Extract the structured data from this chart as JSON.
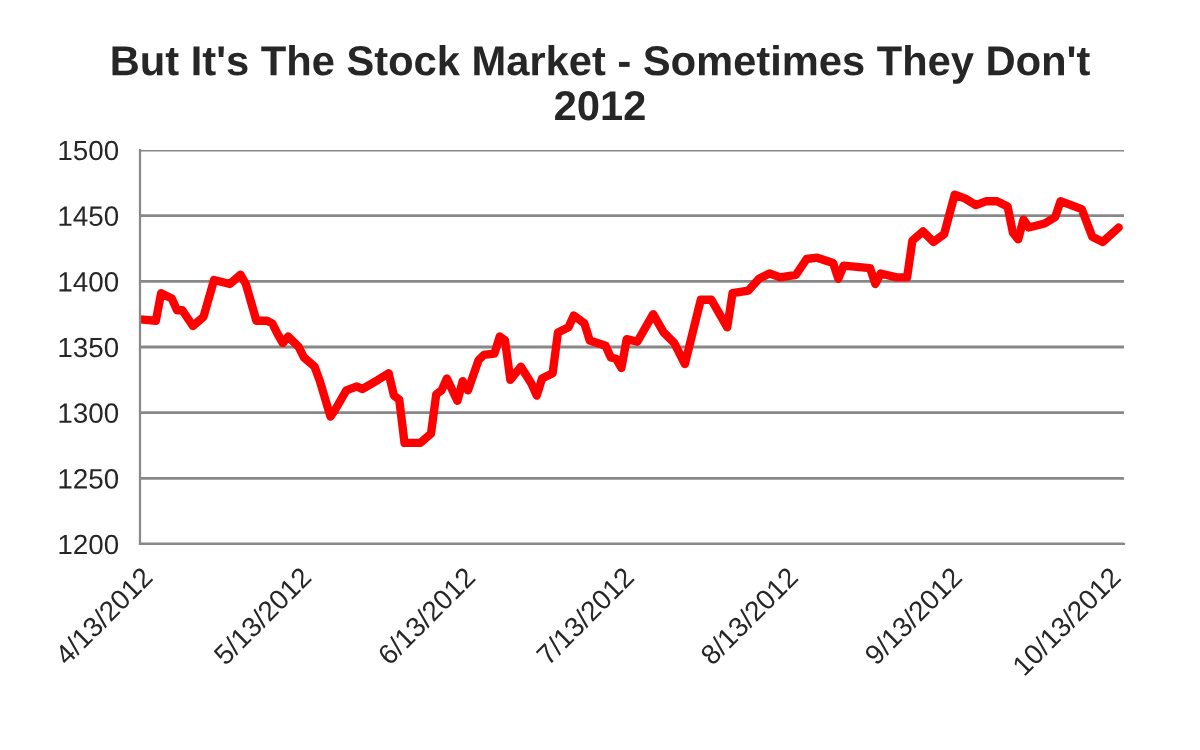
{
  "chart_data": {
    "type": "line",
    "title": "But It's The Stock Market - Sometimes They Don't\n2012",
    "x": [
      "2012-04-13",
      "2012-04-16",
      "2012-04-17",
      "2012-04-19",
      "2012-04-20",
      "2012-04-21",
      "2012-04-23",
      "2012-04-25",
      "2012-04-27",
      "2012-04-30",
      "2012-05-02",
      "2012-05-03",
      "2012-05-05",
      "2012-05-07",
      "2012-05-08",
      "2012-05-09",
      "2012-05-10",
      "2012-05-11",
      "2012-05-13",
      "2012-05-14",
      "2012-05-16",
      "2012-05-17",
      "2012-05-19",
      "2012-05-20",
      "2012-05-22",
      "2012-05-24",
      "2012-05-25",
      "2012-05-28",
      "2012-05-30",
      "2012-05-31",
      "2012-06-01",
      "2012-06-02",
      "2012-06-05",
      "2012-06-07",
      "2012-06-08",
      "2012-06-09",
      "2012-06-10",
      "2012-06-12",
      "2012-06-13",
      "2012-06-14",
      "2012-06-16",
      "2012-06-17",
      "2012-06-19",
      "2012-06-20",
      "2012-06-21",
      "2012-06-22",
      "2012-06-24",
      "2012-06-26",
      "2012-06-27",
      "2012-06-28",
      "2012-06-30",
      "2012-07-01",
      "2012-07-03",
      "2012-07-04",
      "2012-07-06",
      "2012-07-07",
      "2012-07-10",
      "2012-07-11",
      "2012-07-12",
      "2012-07-13",
      "2012-07-14",
      "2012-07-16",
      "2012-07-19",
      "2012-07-21",
      "2012-07-23",
      "2012-07-25",
      "2012-07-28",
      "2012-07-30",
      "2012-08-02",
      "2012-08-03",
      "2012-08-06",
      "2012-08-08",
      "2012-08-10",
      "2012-08-12",
      "2012-08-15",
      "2012-08-17",
      "2012-08-19",
      "2012-08-22",
      "2012-08-23",
      "2012-08-24",
      "2012-08-29",
      "2012-08-30",
      "2012-08-31",
      "2012-09-03",
      "2012-09-05",
      "2012-09-06",
      "2012-09-08",
      "2012-09-10",
      "2012-09-12",
      "2012-09-14",
      "2012-09-16",
      "2012-09-18",
      "2012-09-20",
      "2012-09-22",
      "2012-09-24",
      "2012-09-25",
      "2012-09-26",
      "2012-09-27",
      "2012-09-28",
      "2012-10-01",
      "2012-10-03",
      "2012-10-04",
      "2012-10-06",
      "2012-10-08",
      "2012-10-10",
      "2012-10-12",
      "2012-10-15"
    ],
    "series": [
      {
        "color": "#ff0000",
        "values": [
          1371,
          1370,
          1391,
          1387,
          1378,
          1378,
          1366,
          1373,
          1401,
          1398,
          1405,
          1398,
          1370,
          1370,
          1368,
          1360,
          1353,
          1358,
          1350,
          1342,
          1335,
          1324,
          1297,
          1303,
          1317,
          1320,
          1318,
          1325,
          1330,
          1313,
          1310,
          1277,
          1277,
          1284,
          1314,
          1317,
          1326,
          1309,
          1324,
          1317,
          1340,
          1344,
          1345,
          1358,
          1355,
          1325,
          1335,
          1322,
          1313,
          1326,
          1330,
          1361,
          1365,
          1374,
          1368,
          1355,
          1351,
          1342,
          1341,
          1334,
          1356,
          1354,
          1375,
          1361,
          1353,
          1337,
          1386,
          1386,
          1365,
          1391,
          1393,
          1402,
          1406,
          1403,
          1405,
          1417,
          1418,
          1414,
          1402,
          1412,
          1410,
          1398,
          1406,
          1403,
          1403,
          1431,
          1438,
          1430,
          1436,
          1466,
          1463,
          1458,
          1461,
          1461,
          1457,
          1437,
          1432,
          1447,
          1441,
          1444,
          1449,
          1461,
          1458,
          1455,
          1434,
          1430,
          1441
        ]
      }
    ],
    "xlim": [
      "2012-04-13",
      "2012-10-16"
    ],
    "xticks": [
      {
        "value": "2012-04-13",
        "label": "4/13/2012"
      },
      {
        "value": "2012-05-13",
        "label": "5/13/2012"
      },
      {
        "value": "2012-06-13",
        "label": "6/13/2012"
      },
      {
        "value": "2012-07-13",
        "label": "7/13/2012"
      },
      {
        "value": "2012-08-13",
        "label": "8/13/2012"
      },
      {
        "value": "2012-09-13",
        "label": "9/13/2012"
      },
      {
        "value": "2012-10-13",
        "label": "10/13/2012"
      }
    ],
    "ylim": [
      1200,
      1500
    ],
    "yticks": [
      1200,
      1250,
      1300,
      1350,
      1400,
      1450,
      1500
    ],
    "grid": "y",
    "legend": false,
    "marker": "none",
    "line_style": "solid"
  }
}
